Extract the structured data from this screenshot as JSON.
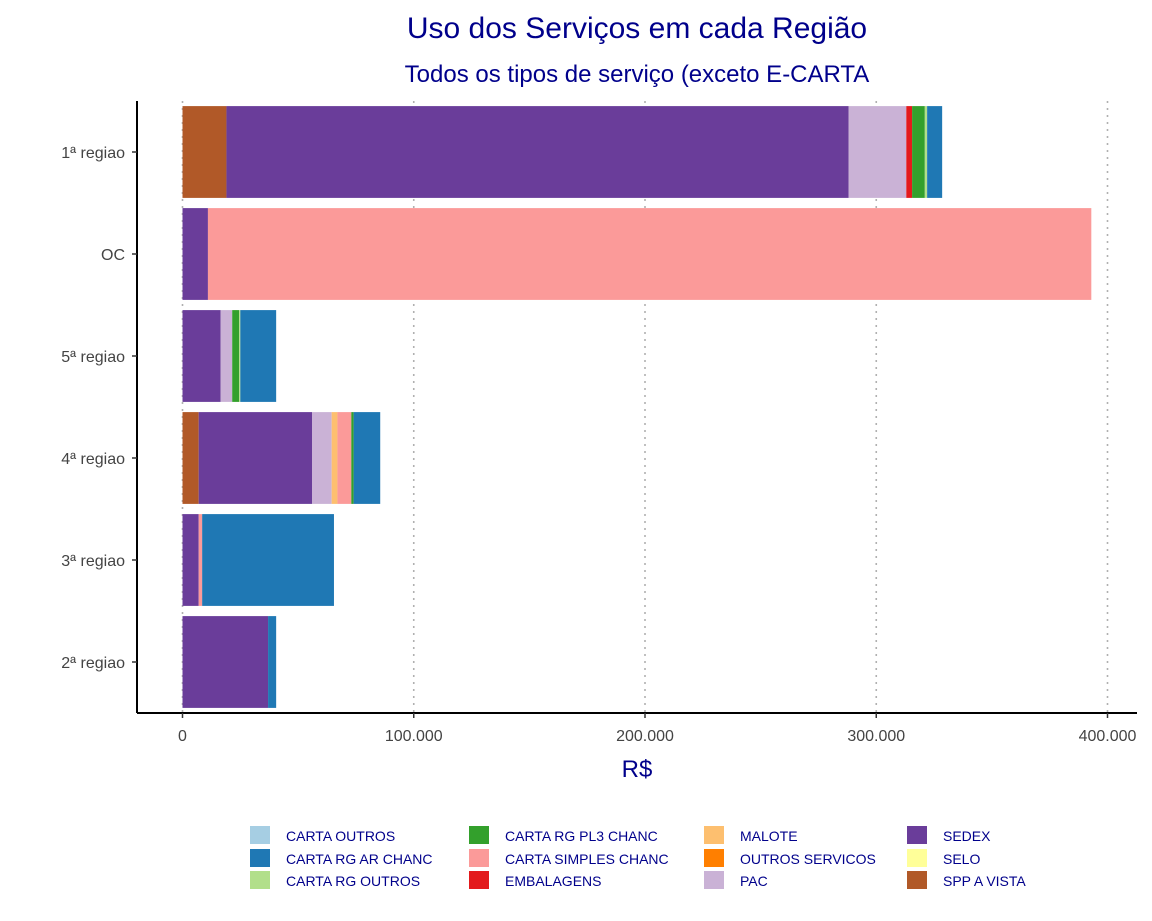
{
  "chart_data": {
    "type": "bar",
    "orientation": "horizontal",
    "stacked": true,
    "title": "Uso dos Serviços em cada Região",
    "subtitle": "Todos os tipos de serviço (exceto E-CARTA",
    "xlabel": "R$",
    "ylabel": "",
    "xlim": [
      -20000,
      410000
    ],
    "xticks": [
      0,
      100000,
      200000,
      300000,
      400000
    ],
    "xtick_labels": [
      "0",
      "100.000",
      "200.000",
      "300.000",
      "400.000"
    ],
    "grid": "vertical-dotted",
    "legend_position": "bottom",
    "categories": [
      "1ª regiao",
      "OC",
      "5ª regiao",
      "4ª regiao",
      "3ª regiao",
      "2ª regiao"
    ],
    "series": [
      {
        "name": "SPP A VISTA",
        "color": "#b15928",
        "values": [
          19000,
          0,
          0,
          7000,
          0,
          0
        ]
      },
      {
        "name": "SEDEX",
        "color": "#6a3d9a",
        "values": [
          269000,
          11000,
          16500,
          49000,
          7000,
          37000
        ]
      },
      {
        "name": "PAC",
        "color": "#cab2d6",
        "values": [
          25000,
          0,
          5000,
          8500,
          0,
          0
        ]
      },
      {
        "name": "MALOTE",
        "color": "#fdbf6f",
        "values": [
          0,
          0,
          0,
          2500,
          0,
          0
        ]
      },
      {
        "name": "CARTA SIMPLES CHANC",
        "color": "#fb9a99",
        "values": [
          0,
          382000,
          0,
          6000,
          1500,
          0
        ]
      },
      {
        "name": "EMBALAGENS",
        "color": "#e31a1c",
        "values": [
          2500,
          0,
          0,
          0,
          0,
          0
        ]
      },
      {
        "name": "CARTA RG PL3 CHANC",
        "color": "#33a02c",
        "values": [
          5500,
          0,
          3000,
          1000,
          0,
          0
        ]
      },
      {
        "name": "CARTA RG OUTROS",
        "color": "#b2df8a",
        "values": [
          1000,
          0,
          500,
          0,
          0,
          0
        ]
      },
      {
        "name": "CARTA RG AR CHANC",
        "color": "#1f78b4",
        "values": [
          6500,
          0,
          15500,
          11500,
          57000,
          3500
        ]
      },
      {
        "name": "CARTA OUTROS",
        "color": "#a6cee3",
        "values": [
          0,
          0,
          0,
          0,
          0,
          0
        ]
      },
      {
        "name": "OUTROS SERVICOS",
        "color": "#ff7f00",
        "values": [
          0,
          0,
          0,
          0,
          0,
          0
        ]
      },
      {
        "name": "SELO",
        "color": "#ffff99",
        "values": [
          0,
          0,
          0,
          0,
          0,
          0
        ]
      }
    ],
    "legend": [
      [
        {
          "name": "CARTA OUTROS",
          "color": "#a6cee3"
        },
        {
          "name": "CARTA RG AR CHANC",
          "color": "#1f78b4"
        },
        {
          "name": "CARTA RG OUTROS",
          "color": "#b2df8a"
        }
      ],
      [
        {
          "name": "CARTA RG PL3 CHANC",
          "color": "#33a02c"
        },
        {
          "name": "CARTA SIMPLES CHANC",
          "color": "#fb9a99"
        },
        {
          "name": "EMBALAGENS",
          "color": "#e31a1c"
        }
      ],
      [
        {
          "name": "MALOTE",
          "color": "#fdbf6f"
        },
        {
          "name": "OUTROS SERVICOS",
          "color": "#ff7f00"
        },
        {
          "name": "PAC",
          "color": "#cab2d6"
        }
      ],
      [
        {
          "name": "SEDEX",
          "color": "#6a3d9a"
        },
        {
          "name": "SELO",
          "color": "#ffff99"
        },
        {
          "name": "SPP A VISTA",
          "color": "#b15928"
        }
      ]
    ]
  }
}
